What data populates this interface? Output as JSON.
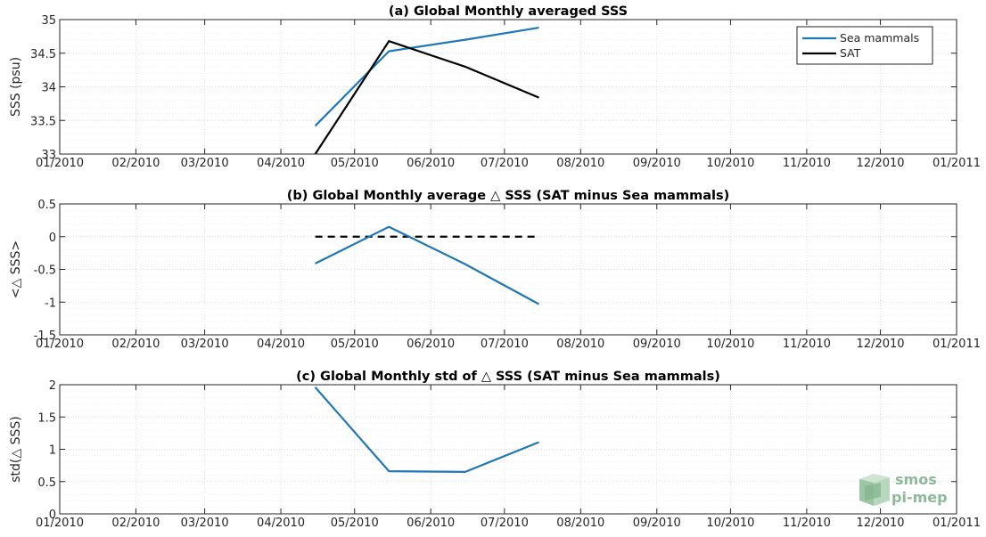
{
  "x_ticks": [
    "01/2010",
    "02/2010",
    "03/2010",
    "04/2010",
    "05/2010",
    "06/2010",
    "07/2010",
    "08/2010",
    "09/2010",
    "10/2010",
    "11/2010",
    "12/2010",
    "01/2011"
  ],
  "chart_data": [
    {
      "type": "line",
      "title": "(a) Global Monthly averaged SSS",
      "xlabel": "",
      "ylabel": "SSS (psu)",
      "ylim": [
        33,
        35
      ],
      "yticks": [
        "33",
        "33.5",
        "34",
        "34.5",
        "35"
      ],
      "x": [
        "2010-04-15",
        "2010-05-15",
        "2010-06-15",
        "2010-07-15"
      ],
      "legend": "top-right",
      "grid": true,
      "series": [
        {
          "name": "Sea mammals",
          "color": "#1f77b4",
          "values": [
            33.42,
            34.53,
            34.7,
            34.88
          ]
        },
        {
          "name": "SAT",
          "color": "#000000",
          "values": [
            33.0,
            34.68,
            34.3,
            33.84
          ]
        }
      ]
    },
    {
      "type": "line",
      "title": "(b) Global Monthly average △ SSS (SAT minus Sea mammals)",
      "xlabel": "",
      "ylabel": "<△ SSS>",
      "ylim": [
        -1.5,
        0.5
      ],
      "yticks": [
        "-1.5",
        "-1",
        "-0.5",
        "0",
        "0.5"
      ],
      "x": [
        "2010-04-15",
        "2010-05-15",
        "2010-06-15",
        "2010-07-15"
      ],
      "grid": true,
      "series": [
        {
          "color": "#1f77b4",
          "values": [
            -0.41,
            0.15,
            -0.42,
            -1.03
          ]
        }
      ],
      "reference_line": {
        "value": 0,
        "style": "dashed",
        "color": "#000000"
      }
    },
    {
      "type": "line",
      "title": "(c) Global Monthly std of △ SSS (SAT minus Sea mammals)",
      "xlabel": "",
      "ylabel": "std(△ SSS)",
      "ylim": [
        0,
        2
      ],
      "yticks": [
        "0",
        "0.5",
        "1",
        "1.5",
        "2"
      ],
      "x": [
        "2010-04-15",
        "2010-05-15",
        "2010-06-15",
        "2010-07-15"
      ],
      "grid": true,
      "series": [
        {
          "color": "#1f77b4",
          "values": [
            1.96,
            0.66,
            0.65,
            1.11
          ]
        }
      ]
    }
  ],
  "logo": {
    "line1": "smos",
    "line2": "pi-mep"
  }
}
